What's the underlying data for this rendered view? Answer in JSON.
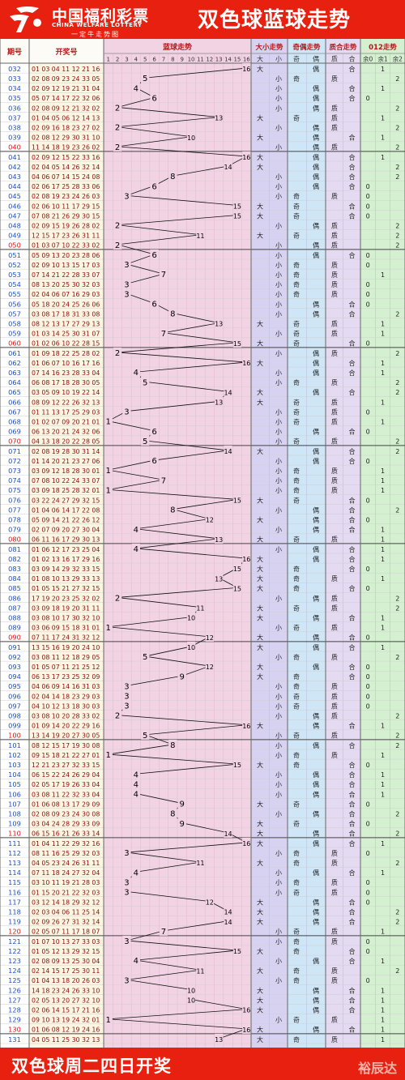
{
  "header": {
    "logo_cn": "中国福利彩票",
    "logo_en": "CHINA WELFARE LOTTERY",
    "logo_sub": "一定牛走势图",
    "title": "双色球蓝球走势"
  },
  "footer": {
    "text": "双色球周二四日开奖",
    "watermark": "裕辰达"
  },
  "colors": {
    "brand_red": "#e8200f",
    "issue_color": "#1f4fb5",
    "numbers_color": "#8a0f0f",
    "blue_zone": "#f2d3e4",
    "size_zone": "#d8d2f2",
    "parity_zone": "#cfe6f7",
    "prime_zone": "#e4daf2",
    "mod_zone": "#d4f0d0"
  },
  "columns": {
    "issue": "期号",
    "numbers": "开奖号",
    "blue_trend": "蓝球走势",
    "size_trend": "大小走势",
    "parity_trend": "奇偶走势",
    "prime_trend": "质合走势",
    "mod_trend": "012走势",
    "blue_ticks": [
      "1",
      "2",
      "3",
      "4",
      "5",
      "6",
      "7",
      "8",
      "9",
      "10",
      "11",
      "12",
      "13",
      "14",
      "15",
      "16"
    ],
    "size": [
      "大",
      "小"
    ],
    "parity": [
      "奇",
      "偶"
    ],
    "prime": [
      "质",
      "合"
    ],
    "mod": [
      "余0",
      "余1",
      "余2"
    ]
  },
  "chart_data": {
    "type": "line",
    "x_label": "期号",
    "y_label": "蓝球",
    "ylim": [
      1,
      16
    ],
    "grid": true,
    "draws": [
      [
        "032",
        "01 03 04 11 12 21 16"
      ],
      [
        "033",
        "02 08 09 23 24 33 05"
      ],
      [
        "034",
        "02 09 12 19 21 31 04"
      ],
      [
        "035",
        "05 07 14 17 22 32 06"
      ],
      [
        "036",
        "02 08 09 12 21 32 02"
      ],
      [
        "037",
        "01 04 05 06 12 14 13"
      ],
      [
        "038",
        "02 09 16 18 23 27 02"
      ],
      [
        "039",
        "02 08 12 29 30 31 10"
      ],
      [
        "040",
        "11 14 18 19 23 26 02"
      ],
      [
        "041",
        "02 09 12 15 22 33 16"
      ],
      [
        "042",
        "02 04 05 14 26 32 14"
      ],
      [
        "043",
        "04 06 07 14 15 24 08"
      ],
      [
        "044",
        "02 06 17 25 28 33 06"
      ],
      [
        "045",
        "02 08 19 23 24 26 03"
      ],
      [
        "046",
        "02 06 10 11 17 29 15"
      ],
      [
        "047",
        "07 08 21 26 29 30 15"
      ],
      [
        "048",
        "02 09 15 19 26 28 02"
      ],
      [
        "049",
        "12 15 17 23 26 31 11"
      ],
      [
        "050",
        "01 03 07 10 22 33 02"
      ],
      [
        "051",
        "05 09 13 20 23 28 06"
      ],
      [
        "052",
        "02 09 10 13 15 17 03"
      ],
      [
        "053",
        "07 14 21 22 28 33 07"
      ],
      [
        "054",
        "08 13 20 25 30 32 03"
      ],
      [
        "055",
        "02 04 06 07 16 29 03"
      ],
      [
        "056",
        "05 18 20 24 25 26 06"
      ],
      [
        "057",
        "03 08 17 18 31 33 08"
      ],
      [
        "058",
        "08 12 13 17 27 29 13"
      ],
      [
        "059",
        "01 03 14 25 30 31 07"
      ],
      [
        "060",
        "01 02 06 10 22 28 15"
      ],
      [
        "061",
        "01 09 18 22 25 28 02"
      ],
      [
        "062",
        "01 06 07 10 16 17 16"
      ],
      [
        "063",
        "07 14 16 23 28 33 04"
      ],
      [
        "064",
        "06 08 17 18 28 30 05"
      ],
      [
        "065",
        "03 05 09 10 19 22 14"
      ],
      [
        "066",
        "08 09 12 22 26 32 13"
      ],
      [
        "067",
        "01 11 13 17 25 29 03"
      ],
      [
        "068",
        "01 02 07 09 20 21 01"
      ],
      [
        "069",
        "06 13 20 21 24 32 06"
      ],
      [
        "070",
        "04 13 18 20 22 28 05"
      ],
      [
        "071",
        "02 08 19 28 30 31 14"
      ],
      [
        "072",
        "01 14 20 21 23 27 06"
      ],
      [
        "073",
        "03 09 12 18 28 30 01"
      ],
      [
        "074",
        "07 08 10 22 24 33 07"
      ],
      [
        "075",
        "03 09 18 25 28 32 01"
      ],
      [
        "076",
        "03 22 24 27 29 32 15"
      ],
      [
        "077",
        "01 04 06 14 17 22 08"
      ],
      [
        "078",
        "05 09 14 21 22 26 12"
      ],
      [
        "079",
        "02 07 09 20 27 30 04"
      ],
      [
        "080",
        "06 11 16 17 29 30 13"
      ],
      [
        "081",
        "01 06 12 17 23 25 04"
      ],
      [
        "082",
        "01 02 13 16 17 29 16"
      ],
      [
        "083",
        "03 09 14 29 32 33 15"
      ],
      [
        "084",
        "01 08 10 13 29 33 13"
      ],
      [
        "085",
        "01 05 15 21 27 32 15"
      ],
      [
        "086",
        "17 19 20 23 25 32 02"
      ],
      [
        "087",
        "03 09 18 19 20 31 11"
      ],
      [
        "088",
        "03 08 10 17 30 32 10"
      ],
      [
        "089",
        "03 06 09 15 18 31 01"
      ],
      [
        "090",
        "07 11 17 24 31 32 12"
      ],
      [
        "091",
        "13 15 16 19 20 24 10"
      ],
      [
        "092",
        "03 08 11 12 18 29 05"
      ],
      [
        "093",
        "01 05 07 11 21 25 12"
      ],
      [
        "094",
        "06 13 17 23 25 32 09"
      ],
      [
        "095",
        "04 06 09 14 16 31 03"
      ],
      [
        "096",
        "02 04 14 18 23 29 03"
      ],
      [
        "097",
        "04 10 12 13 18 30 03"
      ],
      [
        "098",
        "03 08 10 20 28 33 02"
      ],
      [
        "099",
        "01 09 14 20 22 29 16"
      ],
      [
        "100",
        "13 14 19 20 27 30 05"
      ],
      [
        "101",
        "08 12 15 17 19 30 08"
      ],
      [
        "102",
        "09 15 18 21 22 27 01"
      ],
      [
        "103",
        "12 21 23 27 32 33 15"
      ],
      [
        "104",
        "06 15 22 24 26 29 04"
      ],
      [
        "105",
        "02 05 17 19 26 33 04"
      ],
      [
        "106",
        "03 08 11 22 32 33 04"
      ],
      [
        "107",
        "01 06 08 13 17 29 09"
      ],
      [
        "108",
        "02 08 09 23 24 30 08"
      ],
      [
        "109",
        "03 04 24 28 29 33 09"
      ],
      [
        "110",
        "06 15 16 21 26 33 14"
      ],
      [
        "111",
        "01 04 11 22 29 32 16"
      ],
      [
        "112",
        "08 11 16 25 29 32 03"
      ],
      [
        "113",
        "04 05 23 24 26 31 11"
      ],
      [
        "114",
        "07 11 18 24 27 32 04"
      ],
      [
        "115",
        "03 10 11 19 21 28 03"
      ],
      [
        "116",
        "01 15 20 21 22 32 03"
      ],
      [
        "117",
        "03 12 14 18 29 32 12"
      ],
      [
        "118",
        "02 03 04 06 11 25 14"
      ],
      [
        "119",
        "02 09 26 27 31 32 14"
      ],
      [
        "120",
        "02 05 07 11 17 18 07"
      ],
      [
        "121",
        "01 07 10 13 27 33 03"
      ],
      [
        "122",
        "01 05 12 13 29 32 15"
      ],
      [
        "123",
        "02 08 09 13 25 30 04"
      ],
      [
        "124",
        "02 14 15 17 25 30 11"
      ],
      [
        "125",
        "01 04 13 18 20 26 03"
      ],
      [
        "126",
        "14 18 23 24 26 33 10"
      ],
      [
        "127",
        "02 05 13 20 27 32 10"
      ],
      [
        "128",
        "02 06 14 15 17 21 16"
      ],
      [
        "129",
        "09 10 13 19 24 32 01"
      ],
      [
        "130",
        "01 06 08 12 19 24 16"
      ],
      [
        "131",
        "04 05 11 25 30 32 13"
      ]
    ]
  }
}
